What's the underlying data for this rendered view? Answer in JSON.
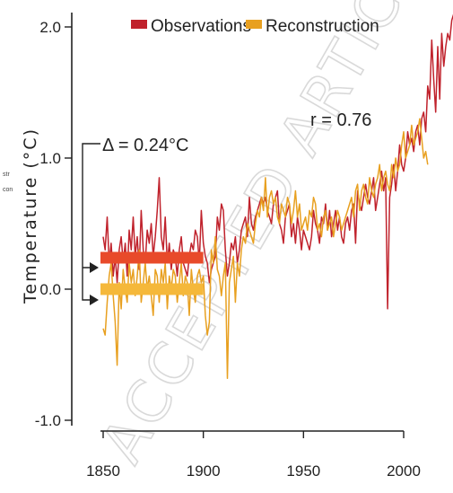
{
  "chart_data": {
    "type": "line",
    "ylabel": "Temperature (°C)",
    "xlabel": "",
    "xlim": [
      1850,
      2022
    ],
    "ylim": [
      -1.0,
      2.1
    ],
    "x_ticks": [
      1850,
      1900,
      1950,
      2000
    ],
    "y_ticks": [
      {
        "value": -1.0,
        "label": "-1.0"
      },
      {
        "value": 0.0,
        "label": "0.0"
      },
      {
        "value": 1.0,
        "label": "1.0"
      },
      {
        "value": 2.0,
        "label": "2.0"
      }
    ],
    "legend_position": "top",
    "series": [
      {
        "name": "Observations",
        "color": "#c0222c",
        "x_start": 1850,
        "values": [
          0.4,
          0.3,
          0.55,
          0.2,
          0.35,
          0.1,
          0.25,
          0.05,
          0.3,
          0.4,
          0.2,
          0.35,
          0.1,
          0.45,
          0.3,
          0.55,
          0.25,
          0.4,
          0.15,
          0.6,
          0.3,
          0.2,
          0.45,
          0.35,
          0.5,
          0.25,
          0.4,
          0.6,
          0.85,
          0.4,
          0.3,
          0.55,
          0.2,
          0.35,
          0.15,
          0.3,
          0.25,
          0.1,
          0.3,
          0.4,
          0.2,
          0.15,
          0.1,
          0.25,
          0.35,
          0.3,
          0.45,
          0.4,
          0.2,
          0.6,
          0.35,
          0.25,
          0.2,
          0.05,
          0.15,
          0.2,
          0.25,
          0.55,
          0.45,
          0.65,
          0.6,
          0.3,
          0.1,
          0.2,
          0.35,
          0.3,
          0.4,
          0.2,
          0.3,
          0.45,
          0.5,
          0.55,
          0.4,
          0.7,
          0.5,
          0.45,
          0.55,
          0.6,
          0.65,
          0.7,
          0.65,
          0.7,
          0.6,
          0.55,
          0.5,
          0.65,
          0.7,
          0.75,
          0.5,
          0.45,
          0.35,
          0.55,
          0.6,
          0.65,
          0.4,
          0.5,
          0.35,
          0.55,
          0.45,
          0.3,
          0.45,
          0.4,
          0.35,
          0.3,
          0.4,
          0.6,
          0.5,
          0.45,
          0.35,
          0.55,
          0.5,
          0.65,
          0.45,
          0.6,
          0.4,
          0.5,
          0.6,
          0.45,
          0.55,
          0.4,
          0.35,
          0.5,
          0.55,
          0.45,
          0.6,
          0.65,
          0.35,
          0.75,
          0.65,
          0.6,
          0.7,
          0.8,
          0.7,
          0.65,
          0.75,
          0.85,
          0.6,
          0.7,
          0.8,
          0.9,
          0.75,
          0.85,
          -0.15,
          0.7,
          0.8,
          0.95,
          0.75,
          0.9,
          1.1,
          0.95,
          0.9,
          1.0,
          1.2,
          1.1,
          1.15,
          1.05,
          1.2,
          1.25,
          1.1,
          1.3,
          1.35,
          1.2,
          1.55,
          1.45,
          1.9,
          1.6,
          1.35,
          1.85,
          1.45,
          1.95,
          1.7,
          1.85,
          1.95,
          1.9,
          2.05,
          2.1
        ]
      },
      {
        "name": "Reconstruction",
        "color": "#e8a020",
        "x_start": 1850,
        "values": [
          -0.3,
          -0.35,
          -0.1,
          0.1,
          0.2,
          -0.05,
          -0.25,
          -0.58,
          0.05,
          -0.15,
          0.15,
          0.0,
          -0.1,
          0.2,
          0.05,
          0.15,
          -0.05,
          0.1,
          0.3,
          -0.1,
          0.05,
          0.2,
          0.0,
          0.1,
          -0.05,
          -0.2,
          0.15,
          0.1,
          -0.1,
          0.15,
          0.05,
          0.2,
          -0.15,
          0.1,
          0.0,
          0.15,
          0.1,
          -0.1,
          0.05,
          0.2,
          -0.05,
          0.1,
          0.05,
          -0.2,
          0.15,
          0.0,
          -0.1,
          0.1,
          0.15,
          0.05,
          0.1,
          -0.2,
          -0.35,
          -0.25,
          0.3,
          0.2,
          0.4,
          0.15,
          0.1,
          -0.05,
          0.1,
          0.2,
          -0.68,
          0.05,
          0.15,
          0.25,
          -0.1,
          0.2,
          0.1,
          0.3,
          0.4,
          0.35,
          0.5,
          0.45,
          0.4,
          0.35,
          0.5,
          0.6,
          0.55,
          0.7,
          0.6,
          0.85,
          0.55,
          0.7,
          0.75,
          0.65,
          0.7,
          0.55,
          0.5,
          0.65,
          0.6,
          0.55,
          0.7,
          0.65,
          0.5,
          0.6,
          0.75,
          0.55,
          0.65,
          0.45,
          0.5,
          0.55,
          0.45,
          0.6,
          0.55,
          0.7,
          0.65,
          0.45,
          0.5,
          0.4,
          0.55,
          0.6,
          0.45,
          0.5,
          0.55,
          0.4,
          0.5,
          0.6,
          0.55,
          0.45,
          0.5,
          0.55,
          0.6,
          0.65,
          0.7,
          0.55,
          0.75,
          0.8,
          0.6,
          0.75,
          0.8,
          0.7,
          0.65,
          0.85,
          0.75,
          0.7,
          0.8,
          0.85,
          0.95,
          0.75,
          0.85,
          0.9,
          0.8,
          0.75,
          0.95,
          0.85,
          1.0,
          0.9,
          0.95,
          1.1,
          1.2,
          1.0,
          1.05,
          1.1,
          1.25,
          1.1,
          1.15,
          1.2,
          1.3,
          1.15,
          1.0,
          1.05,
          0.95
        ]
      }
    ],
    "annotations": [
      {
        "text": "Δ = 0.24°C"
      },
      {
        "text": "r = 0.76"
      }
    ],
    "baselines": [
      {
        "name": "Observations baseline",
        "value": 0.24,
        "x_start": 1850,
        "x_end": 1900,
        "color": "#e84a2a"
      },
      {
        "name": "Reconstruction baseline",
        "value": 0.0,
        "x_start": 1850,
        "x_end": 1900,
        "color": "#f5b83a"
      }
    ],
    "side_labels": [
      "str",
      "con"
    ],
    "watermark": "ACCEPTED ARTICLE"
  }
}
